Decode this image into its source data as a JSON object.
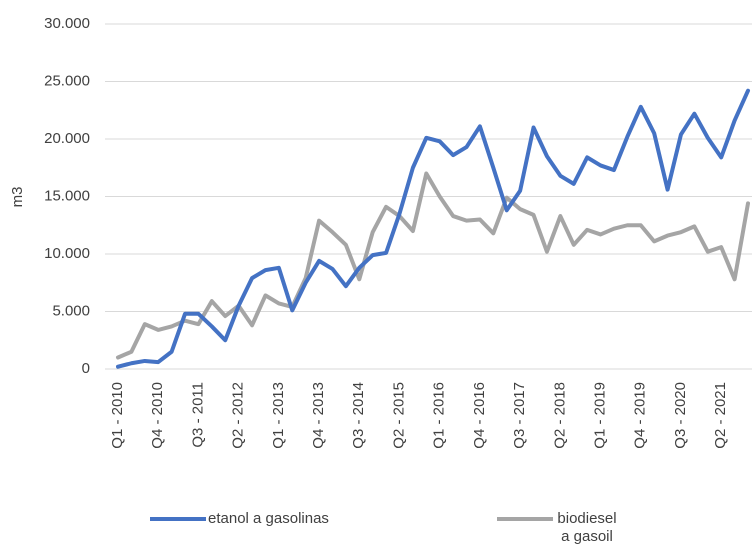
{
  "chart_data": {
    "type": "line",
    "y_label": "m3",
    "categories": [
      "Q1 - 2010",
      null,
      null,
      "Q4 - 2010",
      null,
      null,
      "Q3 - 2011",
      null,
      null,
      "Q2 - 2012",
      null,
      null,
      "Q1 - 2013",
      null,
      null,
      "Q4 - 2013",
      null,
      null,
      "Q3 - 2014",
      null,
      null,
      "Q2 - 2015",
      null,
      null,
      "Q1 - 2016",
      null,
      null,
      "Q4 - 2016",
      null,
      null,
      "Q3 - 2017",
      null,
      null,
      "Q2 - 2018",
      null,
      null,
      "Q1 - 2019",
      null,
      null,
      "Q4 - 2019",
      null,
      null,
      "Q3 - 2020",
      null,
      null,
      "Q2 - 2021",
      null,
      null
    ],
    "series": [
      {
        "name": "etanol a gasolinas",
        "color": "#4472c4",
        "values": [
          200,
          500,
          700,
          600,
          1500,
          4800,
          4800,
          3700,
          2500,
          5500,
          7900,
          8600,
          8800,
          5100,
          7500,
          9400,
          8700,
          7200,
          8800,
          9900,
          10100,
          13500,
          17500,
          20100,
          19800,
          18600,
          19300,
          21100,
          17500,
          13800,
          15500,
          21000,
          18500,
          16800,
          16100,
          18400,
          17700,
          17300,
          20200,
          22800,
          20500,
          15600,
          20400,
          22200,
          20100,
          18400,
          21600,
          24200
        ]
      },
      {
        "name": "biodiesel a gasoil",
        "color": "#a5a5a5",
        "values": [
          1000,
          1500,
          3900,
          3400,
          3700,
          4200,
          3900,
          5900,
          4600,
          5500,
          3800,
          6400,
          5700,
          5400,
          7900,
          12900,
          11900,
          10800,
          7800,
          11900,
          14100,
          13300,
          12000,
          17000,
          15000,
          13300,
          12900,
          13000,
          11800,
          14900,
          13900,
          13400,
          10200,
          13300,
          10800,
          12100,
          11700,
          12200,
          12500,
          12500,
          11100,
          11600,
          11900,
          12400,
          10200,
          10600,
          7800,
          14400
        ]
      }
    ],
    "ylim": [
      0,
      30000
    ],
    "yticks": [
      0,
      {
        "value": 5000,
        "label": "5.000"
      },
      {
        "value": 10000,
        "label": "10.000"
      },
      {
        "value": 15000,
        "label": "15.000"
      },
      {
        "value": 20000,
        "label": "20.000"
      },
      {
        "value": 25000,
        "label": "25.000"
      },
      {
        "value": 30000,
        "label": "30.000"
      }
    ],
    "grid": true
  }
}
